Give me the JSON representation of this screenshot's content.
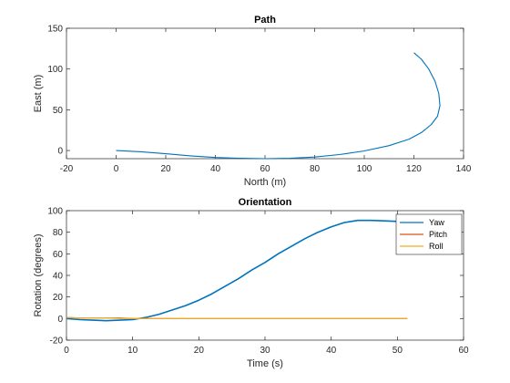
{
  "colors": {
    "yaw": "#0072BD",
    "pitch": "#D95319",
    "roll": "#EDB120",
    "axis": "#262626",
    "background": "#ffffff"
  },
  "chart_data": [
    {
      "type": "line",
      "title": "Path",
      "xlabel": "North (m)",
      "ylabel": "East (m)",
      "xlim": [
        -20,
        140
      ],
      "ylim": [
        -10,
        150
      ],
      "xticks": [
        -20,
        0,
        20,
        40,
        60,
        80,
        100,
        120,
        140
      ],
      "yticks": [
        0,
        50,
        100,
        150
      ],
      "grid": false,
      "series": [
        {
          "x": [
            0,
            10,
            20,
            30,
            40,
            50,
            60,
            70,
            80,
            90,
            100,
            110,
            118,
            123,
            127,
            129.5,
            130.5,
            130,
            128.5,
            126,
            123,
            120
          ],
          "y": [
            0,
            -1.5,
            -4,
            -6.5,
            -8.5,
            -9.5,
            -10,
            -9.5,
            -8,
            -5,
            -0.5,
            6,
            14,
            22,
            32,
            42,
            55,
            70,
            85,
            100,
            112,
            120
          ]
        }
      ]
    },
    {
      "type": "line",
      "title": "Orientation",
      "xlabel": "Time (s)",
      "ylabel": "Rotation (degrees)",
      "xlim": [
        0,
        60
      ],
      "ylim": [
        -20,
        100
      ],
      "xticks": [
        0,
        10,
        20,
        30,
        40,
        50,
        60
      ],
      "yticks": [
        -20,
        0,
        20,
        40,
        60,
        80,
        100
      ],
      "grid": false,
      "legend": "top-right",
      "series": [
        {
          "name": "Yaw",
          "x": [
            0,
            2,
            4,
            6,
            8,
            10,
            12,
            14,
            16,
            18,
            20,
            22,
            24,
            26,
            28,
            30,
            32,
            34,
            36,
            38,
            40,
            42,
            44,
            46,
            48,
            50,
            51.5
          ],
          "y": [
            0,
            -1,
            -1.5,
            -2,
            -1.5,
            -1,
            1,
            4,
            8,
            12,
            17,
            23,
            30,
            37,
            45,
            52,
            60,
            67,
            74,
            80,
            85,
            89,
            91,
            91,
            90.5,
            90,
            89
          ]
        },
        {
          "name": "Pitch",
          "x": [
            0,
            2,
            4,
            6,
            8,
            10,
            12,
            20,
            30,
            40,
            51.5
          ],
          "y": [
            1,
            0.5,
            0.5,
            0.5,
            0.5,
            0,
            0,
            0,
            0,
            0,
            0
          ]
        },
        {
          "name": "Roll",
          "x": [
            0,
            2,
            4,
            6,
            8,
            10,
            12,
            20,
            30,
            40,
            51.5
          ],
          "y": [
            1,
            0.5,
            0.5,
            0.5,
            0,
            0,
            0,
            0,
            0,
            0,
            0
          ]
        }
      ]
    }
  ]
}
